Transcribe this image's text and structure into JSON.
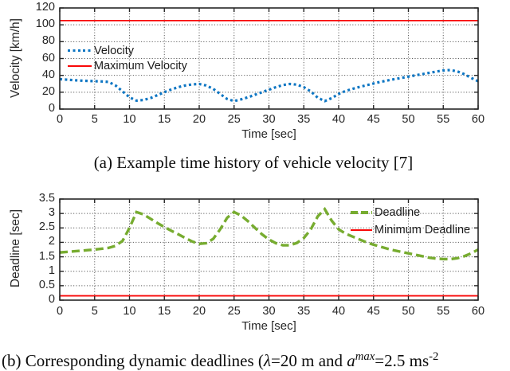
{
  "colors": {
    "background": "#ffffff",
    "axis": "#262626",
    "grid": "#5f5f5f",
    "velocity_blue": "#0e76c3",
    "limit_red": "#f90808",
    "deadline_green": "#77ac30",
    "text": "#262626"
  },
  "chart_data": [
    {
      "type": "line",
      "title": "",
      "xlabel": "Time [sec]",
      "ylabel": "Velocity [km/h]",
      "xlim": [
        0,
        60
      ],
      "ylim": [
        0,
        120
      ],
      "xticks": [
        0,
        5,
        10,
        15,
        20,
        25,
        30,
        35,
        40,
        45,
        50,
        55,
        60
      ],
      "yticks": [
        0,
        20,
        40,
        60,
        80,
        100,
        120
      ],
      "grid": true,
      "legend_position": "upper-left-inside",
      "series": [
        {
          "name": "Velocity",
          "color": "#0e76c3",
          "line_style": "dotted",
          "x": [
            0,
            1,
            2,
            3,
            4,
            5,
            6,
            7,
            8,
            9,
            10,
            11,
            12,
            13,
            14,
            15,
            16,
            17,
            18,
            19,
            20,
            21,
            22,
            23,
            24,
            25,
            26,
            27,
            28,
            29,
            30,
            31,
            32,
            33,
            34,
            35,
            36,
            37,
            38,
            39,
            40,
            41,
            42,
            43,
            44,
            45,
            46,
            47,
            48,
            49,
            50,
            51,
            52,
            53,
            54,
            55,
            56,
            57,
            58,
            59,
            60
          ],
          "y": [
            35.5,
            34.9,
            34.3,
            33.8,
            33.4,
            33.1,
            32.8,
            32.2,
            28,
            21,
            14,
            10,
            10.8,
            13,
            16.5,
            20,
            23.3,
            26,
            28,
            29.3,
            29.8,
            28,
            24,
            18,
            12,
            9.5,
            11.5,
            14,
            17,
            20,
            23,
            26,
            28.5,
            29.8,
            29,
            26,
            21,
            13.5,
            9.5,
            13,
            18,
            21.5,
            24,
            26.3,
            28.3,
            30.3,
            32.3,
            34,
            35.5,
            37,
            38.5,
            40,
            41.5,
            43,
            44.5,
            45.8,
            46.3,
            44.8,
            41.5,
            37,
            33
          ]
        },
        {
          "name": "Maximum Velocity",
          "color": "#f90808",
          "line_style": "solid",
          "const_y": 105
        }
      ]
    },
    {
      "type": "line",
      "title": "",
      "xlabel": "Time [sec]",
      "ylabel": "Deadline [sec]",
      "xlim": [
        0,
        60
      ],
      "ylim": [
        0,
        3.5
      ],
      "xticks": [
        0,
        5,
        10,
        15,
        20,
        25,
        30,
        35,
        40,
        45,
        50,
        55,
        60
      ],
      "yticks": [
        0,
        0.5,
        1,
        1.5,
        2,
        2.5,
        3,
        3.5
      ],
      "grid": true,
      "legend_position": "upper-right-inside",
      "series": [
        {
          "name": "Deadline",
          "color": "#77ac30",
          "line_style": "dashed",
          "x": [
            0,
            1,
            2,
            3,
            4,
            5,
            6,
            7,
            8,
            9,
            10,
            11,
            12,
            13,
            14,
            15,
            16,
            17,
            18,
            19,
            20,
            21,
            22,
            23,
            24,
            25,
            26,
            27,
            28,
            29,
            30,
            31,
            32,
            33,
            34,
            35,
            36,
            37,
            38,
            39,
            40,
            41,
            42,
            43,
            44,
            45,
            46,
            47,
            48,
            49,
            50,
            51,
            52,
            53,
            54,
            55,
            56,
            57,
            58,
            59,
            60
          ],
          "y": [
            1.65,
            1.67,
            1.69,
            1.71,
            1.73,
            1.75,
            1.78,
            1.81,
            1.88,
            2.05,
            2.5,
            3.05,
            2.97,
            2.82,
            2.67,
            2.53,
            2.4,
            2.28,
            2.15,
            2.03,
            1.95,
            1.97,
            2.12,
            2.45,
            2.85,
            3.05,
            2.93,
            2.73,
            2.5,
            2.28,
            2.1,
            1.97,
            1.9,
            1.9,
            1.98,
            2.15,
            2.45,
            2.9,
            3.15,
            2.75,
            2.45,
            2.3,
            2.2,
            2.1,
            2.0,
            1.92,
            1.85,
            1.78,
            1.72,
            1.67,
            1.62,
            1.57,
            1.52,
            1.47,
            1.44,
            1.42,
            1.42,
            1.45,
            1.52,
            1.62,
            1.75
          ]
        },
        {
          "name": "Minimum Deadline",
          "color": "#f90808",
          "line_style": "solid",
          "const_y": 0.15
        }
      ]
    }
  ],
  "captions": {
    "a": "(a) Example time history of vehicle velocity [7]",
    "b_p1": "(b) Corresponding dynamic deadlines (",
    "b_lambda": "λ",
    "b_p2": "=20 m and ",
    "b_var": "a",
    "b_sup1": "max",
    "b_p3": "=2.5 ms",
    "b_sup2": "-2"
  }
}
